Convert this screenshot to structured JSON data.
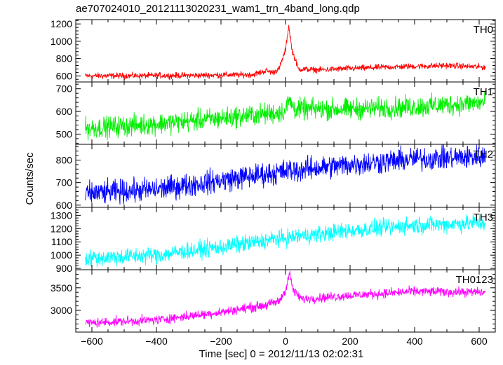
{
  "title": "ae707024010_20121113020231_wam1_trn_4band_long.qdp",
  "xlabel": "Time [sec] 0 = 2012/11/13 02:02:31",
  "ylabel": "Counts/sec",
  "chart_data": {
    "type": "line",
    "title": "ae707024010_20121113020231_wam1_trn_4band_long.qdp",
    "xlabel": "Time [sec] 0 = 2012/11/13 02:02:31",
    "ylabel": "Counts/sec",
    "xlim": [
      -650,
      650
    ],
    "x_ticks": [
      -600,
      -400,
      -200,
      0,
      200,
      400,
      600
    ],
    "x_tick_labels": [
      "−600",
      "−400",
      "−200",
      "0",
      "200",
      "400",
      "600"
    ],
    "grid": false,
    "panels": [
      {
        "name": "TH0",
        "color": "#ff0000",
        "ylim": [
          530,
          1250
        ],
        "y_ticks": [
          600,
          800,
          1000,
          1200
        ],
        "noise": 30,
        "profile": [
          [
            -620,
            600
          ],
          [
            -300,
            605
          ],
          [
            -100,
            615
          ],
          [
            -60,
            660
          ],
          [
            -40,
            640
          ],
          [
            -20,
            680
          ],
          [
            0,
            900
          ],
          [
            10,
            1180
          ],
          [
            20,
            900
          ],
          [
            40,
            680
          ],
          [
            100,
            670
          ],
          [
            300,
            700
          ],
          [
            500,
            720
          ],
          [
            620,
            700
          ]
        ]
      },
      {
        "name": "TH1",
        "color": "#00ee00",
        "ylim": [
          455,
          730
        ],
        "y_ticks": [
          500,
          600,
          700
        ],
        "noise": 40,
        "profile": [
          [
            -620,
            525
          ],
          [
            -400,
            545
          ],
          [
            -200,
            570
          ],
          [
            -50,
            590
          ],
          [
            0,
            600
          ],
          [
            10,
            650
          ],
          [
            30,
            610
          ],
          [
            200,
            610
          ],
          [
            400,
            620
          ],
          [
            620,
            640
          ]
        ]
      },
      {
        "name": "TH2",
        "color": "#0000ff",
        "ylim": [
          590,
          870
        ],
        "y_ticks": [
          600,
          700,
          800
        ],
        "noise": 45,
        "profile": [
          [
            -620,
            650
          ],
          [
            -400,
            670
          ],
          [
            -200,
            710
          ],
          [
            0,
            750
          ],
          [
            200,
            780
          ],
          [
            400,
            805
          ],
          [
            620,
            815
          ]
        ]
      },
      {
        "name": "TH3",
        "color": "#00ffff",
        "ylim": [
          890,
          1360
        ],
        "y_ticks": [
          900,
          1000,
          1100,
          1200,
          1300
        ],
        "noise": 55,
        "profile": [
          [
            -620,
            975
          ],
          [
            -400,
            1000
          ],
          [
            -200,
            1060
          ],
          [
            0,
            1130
          ],
          [
            200,
            1185
          ],
          [
            400,
            1225
          ],
          [
            620,
            1245
          ]
        ]
      },
      {
        "name": "TH0123",
        "color": "#ff00ff",
        "ylim": [
          2520,
          3900
        ],
        "y_ticks": [
          3000,
          3500
        ],
        "noise": 90,
        "profile": [
          [
            -620,
            2720
          ],
          [
            -400,
            2790
          ],
          [
            -200,
            2960
          ],
          [
            -60,
            3120
          ],
          [
            -20,
            3200
          ],
          [
            0,
            3450
          ],
          [
            12,
            3820
          ],
          [
            25,
            3420
          ],
          [
            50,
            3250
          ],
          [
            200,
            3330
          ],
          [
            400,
            3420
          ],
          [
            620,
            3400
          ]
        ]
      }
    ]
  }
}
